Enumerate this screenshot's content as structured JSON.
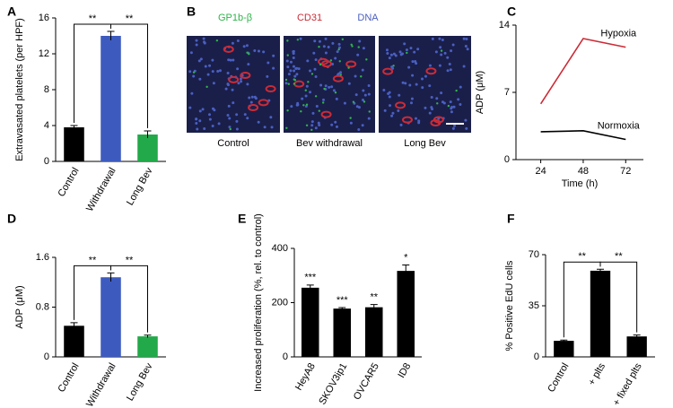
{
  "chart_data": [
    {
      "type": "bar",
      "panel": "A",
      "ylabel": "Extravasated platelets (per HPF)",
      "categories": [
        "Control",
        "Withdrawal",
        "Long Bev"
      ],
      "values": [
        3.8,
        14.0,
        3.0
      ],
      "errors": [
        0.2,
        0.5,
        0.4
      ],
      "colors": [
        "#000000",
        "#3d5bbf",
        "#22a94a"
      ],
      "ylim": [
        0,
        16
      ],
      "yticks": [
        0,
        4,
        8,
        12,
        16
      ],
      "brackets": [
        {
          "between": [
            "Control",
            "Withdrawal"
          ],
          "label": "**"
        },
        {
          "between": [
            "Withdrawal",
            "Long Bev"
          ],
          "label": "**"
        }
      ]
    },
    {
      "type": "line",
      "panel": "C",
      "xlabel": "Time (h)",
      "ylabel": "ADP (μM)",
      "x": [
        24,
        48,
        72
      ],
      "series": [
        {
          "name": "Hypoxia",
          "color": "#cc2b36",
          "values": [
            5.8,
            12.6,
            11.7
          ]
        },
        {
          "name": "Normoxia",
          "color": "#000000",
          "values": [
            2.9,
            3.0,
            2.1
          ]
        }
      ],
      "xlim": [
        10,
        82
      ],
      "xticks": [
        24,
        48,
        72
      ],
      "ylim": [
        0,
        14
      ],
      "yticks": [
        0,
        7,
        14
      ]
    },
    {
      "type": "bar",
      "panel": "D",
      "ylabel": "ADP (μM)",
      "categories": [
        "Control",
        "Withdrawal",
        "Long Bev"
      ],
      "values": [
        0.5,
        1.28,
        0.33
      ],
      "errors": [
        0.05,
        0.07,
        0.02
      ],
      "colors": [
        "#000000",
        "#3d5bbf",
        "#22a94a"
      ],
      "ylim": [
        0,
        1.6
      ],
      "yticks": [
        0,
        0.8,
        1.6
      ],
      "brackets": [
        {
          "between": [
            "Control",
            "Withdrawal"
          ],
          "label": "**"
        },
        {
          "between": [
            "Withdrawal",
            "Long Bev"
          ],
          "label": "**"
        }
      ]
    },
    {
      "type": "bar",
      "panel": "E",
      "ylabel": "Increased proliferation (%, rel. to control)",
      "categories": [
        "HeyA8",
        "SKOV3ip1",
        "OVCAR5",
        "ID8"
      ],
      "values": [
        255,
        178,
        183,
        317
      ],
      "errors": [
        10,
        4,
        10,
        22
      ],
      "colors": [
        "#000000",
        "#000000",
        "#000000",
        "#000000"
      ],
      "ylim": [
        0,
        400
      ],
      "yticks": [
        0,
        200,
        400
      ],
      "annotations": [
        "***",
        "***",
        "**",
        "*"
      ]
    },
    {
      "type": "bar",
      "panel": "F",
      "ylabel": "% Positive EdU cells",
      "categories": [
        "Control",
        "+ plts",
        "+ fixed plts"
      ],
      "values": [
        11,
        59,
        14
      ],
      "errors": [
        0.5,
        1,
        1
      ],
      "colors": [
        "#000000",
        "#000000",
        "#000000"
      ],
      "ylim": [
        0,
        70
      ],
      "yticks": [
        0,
        35,
        70
      ],
      "brackets": [
        {
          "between": [
            "Control",
            "+ plts"
          ],
          "label": "**"
        },
        {
          "between": [
            "+ plts",
            "+ fixed plts"
          ],
          "label": "**"
        }
      ]
    }
  ],
  "panel_b": {
    "panel": "B",
    "stains": [
      {
        "name": "GP1b-β",
        "color": "#2fb34a"
      },
      {
        "name": "CD31",
        "color": "#cc2b36"
      },
      {
        "name": "DNA",
        "color": "#4a5fc1"
      }
    ],
    "images": [
      "Control",
      "Bev withdrawal",
      "Long Bev"
    ]
  }
}
